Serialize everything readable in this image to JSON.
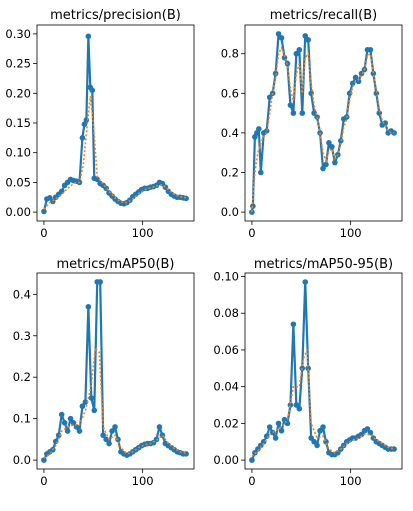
{
  "colors": {
    "raw": "#1f77b4",
    "smooth": "#ff7f0e",
    "marker": "#1f77b4"
  },
  "chart_data": [
    {
      "type": "line",
      "title": "metrics/precision(B)",
      "xlim": [
        -7,
        152
      ],
      "ylim": [
        -0.015,
        0.315
      ],
      "xticks": [
        {
          "v": 0,
          "label": "0"
        },
        {
          "v": 100,
          "label": "100"
        }
      ],
      "yticks": [
        {
          "v": 0.0,
          "label": "0.00"
        },
        {
          "v": 0.05,
          "label": "0.05"
        },
        {
          "v": 0.1,
          "label": "0.10"
        },
        {
          "v": 0.15,
          "label": "0.15"
        },
        {
          "v": 0.2,
          "label": "0.20"
        },
        {
          "v": 0.25,
          "label": "0.25"
        },
        {
          "v": 0.3,
          "label": "0.30"
        }
      ],
      "series": [
        {
          "style": "raw",
          "x": [
            0,
            3,
            6,
            9,
            12,
            15,
            18,
            21,
            24,
            27,
            30,
            33,
            36,
            39,
            41,
            43,
            45,
            47,
            49,
            51,
            54,
            57,
            60,
            63,
            66,
            69,
            72,
            75,
            78,
            81,
            84,
            87,
            90,
            93,
            96,
            99,
            102,
            105,
            108,
            111,
            114,
            117,
            120,
            123,
            126,
            129,
            132,
            135,
            138,
            141,
            144
          ],
          "y": [
            0.001,
            0.022,
            0.024,
            0.018,
            0.025,
            0.03,
            0.035,
            0.045,
            0.05,
            0.055,
            0.053,
            0.052,
            0.05,
            0.125,
            0.148,
            0.155,
            0.296,
            0.21,
            0.205,
            0.057,
            0.055,
            0.048,
            0.045,
            0.04,
            0.032,
            0.027,
            0.022,
            0.018,
            0.015,
            0.014,
            0.016,
            0.02,
            0.026,
            0.03,
            0.034,
            0.038,
            0.04,
            0.04,
            0.042,
            0.043,
            0.045,
            0.05,
            0.048,
            0.042,
            0.035,
            0.03,
            0.027,
            0.025,
            0.025,
            0.024,
            0.023
          ]
        },
        {
          "style": "smooth",
          "x": [
            0,
            6,
            12,
            18,
            24,
            30,
            36,
            40,
            44,
            47,
            50,
            54,
            60,
            66,
            72,
            78,
            84,
            90,
            96,
            102,
            108,
            114,
            120,
            126,
            132,
            138,
            144
          ],
          "y": [
            0.005,
            0.016,
            0.022,
            0.03,
            0.04,
            0.048,
            0.05,
            0.08,
            0.15,
            0.195,
            0.15,
            0.06,
            0.047,
            0.035,
            0.024,
            0.017,
            0.016,
            0.022,
            0.031,
            0.038,
            0.041,
            0.044,
            0.046,
            0.038,
            0.03,
            0.026,
            0.024
          ]
        }
      ]
    },
    {
      "type": "line",
      "title": "metrics/recall(B)",
      "xlim": [
        -7,
        152
      ],
      "ylim": [
        -0.045,
        0.945
      ],
      "xticks": [
        {
          "v": 0,
          "label": "0"
        },
        {
          "v": 100,
          "label": "100"
        }
      ],
      "yticks": [
        {
          "v": 0.0,
          "label": "0.0"
        },
        {
          "v": 0.2,
          "label": "0.2"
        },
        {
          "v": 0.4,
          "label": "0.4"
        },
        {
          "v": 0.6,
          "label": "0.6"
        },
        {
          "v": 0.8,
          "label": "0.8"
        }
      ],
      "series": [
        {
          "style": "raw",
          "x": [
            0,
            1,
            3,
            5,
            7,
            9,
            12,
            15,
            18,
            21,
            24,
            27,
            30,
            33,
            36,
            39,
            42,
            45,
            48,
            51,
            54,
            57,
            60,
            63,
            66,
            69,
            72,
            75,
            78,
            81,
            84,
            87,
            90,
            93,
            96,
            99,
            102,
            105,
            108,
            111,
            114,
            117,
            120,
            123,
            126,
            129,
            132,
            135,
            138,
            141,
            144
          ],
          "y": [
            0.0,
            0.03,
            0.38,
            0.4,
            0.42,
            0.2,
            0.4,
            0.41,
            0.58,
            0.6,
            0.7,
            0.9,
            0.88,
            0.78,
            0.75,
            0.54,
            0.5,
            0.8,
            0.82,
            0.5,
            0.89,
            0.87,
            0.6,
            0.5,
            0.48,
            0.4,
            0.22,
            0.24,
            0.35,
            0.33,
            0.25,
            0.29,
            0.36,
            0.47,
            0.48,
            0.6,
            0.65,
            0.68,
            0.66,
            0.7,
            0.72,
            0.82,
            0.82,
            0.7,
            0.6,
            0.5,
            0.44,
            0.45,
            0.4,
            0.41,
            0.4
          ]
        },
        {
          "style": "smooth",
          "x": [
            0,
            3,
            6,
            9,
            12,
            15,
            18,
            21,
            24,
            27,
            30,
            33,
            36,
            39,
            42,
            45,
            48,
            51,
            54,
            57,
            60,
            63,
            66,
            69,
            72,
            75,
            78,
            81,
            84,
            87,
            90,
            93,
            96,
            99,
            102,
            105,
            108,
            111,
            114,
            117,
            120,
            123,
            126,
            129,
            132,
            135,
            138,
            141,
            144
          ],
          "y": [
            0.0,
            0.2,
            0.3,
            0.35,
            0.38,
            0.4,
            0.5,
            0.6,
            0.68,
            0.8,
            0.83,
            0.79,
            0.74,
            0.62,
            0.56,
            0.7,
            0.75,
            0.6,
            0.78,
            0.8,
            0.65,
            0.54,
            0.48,
            0.4,
            0.3,
            0.26,
            0.31,
            0.32,
            0.27,
            0.29,
            0.34,
            0.43,
            0.47,
            0.57,
            0.63,
            0.66,
            0.67,
            0.69,
            0.72,
            0.79,
            0.8,
            0.7,
            0.62,
            0.52,
            0.46,
            0.44,
            0.41,
            0.4,
            0.4
          ]
        }
      ]
    },
    {
      "type": "line",
      "title": "metrics/mAP50(B)",
      "xlim": [
        -7,
        152
      ],
      "ylim": [
        -0.0215,
        0.4515
      ],
      "xticks": [
        {
          "v": 0,
          "label": "0"
        },
        {
          "v": 100,
          "label": "100"
        }
      ],
      "yticks": [
        {
          "v": 0.0,
          "label": "0.0"
        },
        {
          "v": 0.1,
          "label": "0.1"
        },
        {
          "v": 0.2,
          "label": "0.2"
        },
        {
          "v": 0.3,
          "label": "0.3"
        },
        {
          "v": 0.4,
          "label": "0.4"
        }
      ],
      "series": [
        {
          "style": "raw",
          "x": [
            0,
            3,
            6,
            9,
            12,
            15,
            18,
            21,
            24,
            27,
            30,
            33,
            36,
            39,
            42,
            45,
            48,
            51,
            54,
            57,
            60,
            63,
            66,
            69,
            72,
            75,
            78,
            81,
            84,
            87,
            90,
            93,
            96,
            99,
            102,
            105,
            108,
            111,
            114,
            117,
            120,
            123,
            126,
            129,
            132,
            135,
            138,
            141,
            144
          ],
          "y": [
            0.0,
            0.015,
            0.02,
            0.025,
            0.045,
            0.06,
            0.11,
            0.09,
            0.07,
            0.1,
            0.09,
            0.08,
            0.07,
            0.13,
            0.14,
            0.37,
            0.15,
            0.12,
            0.43,
            0.43,
            0.06,
            0.05,
            0.04,
            0.07,
            0.08,
            0.05,
            0.02,
            0.015,
            0.012,
            0.015,
            0.02,
            0.025,
            0.03,
            0.035,
            0.038,
            0.04,
            0.04,
            0.042,
            0.05,
            0.08,
            0.06,
            0.04,
            0.035,
            0.03,
            0.025,
            0.02,
            0.018,
            0.015,
            0.015
          ]
        },
        {
          "style": "smooth",
          "x": [
            0,
            6,
            12,
            18,
            24,
            30,
            36,
            42,
            48,
            52,
            56,
            60,
            66,
            72,
            78,
            84,
            90,
            96,
            102,
            108,
            114,
            120,
            126,
            132,
            138,
            144
          ],
          "y": [
            0.005,
            0.015,
            0.035,
            0.07,
            0.08,
            0.085,
            0.085,
            0.12,
            0.18,
            0.27,
            0.26,
            0.08,
            0.05,
            0.06,
            0.03,
            0.015,
            0.02,
            0.03,
            0.037,
            0.04,
            0.048,
            0.06,
            0.04,
            0.028,
            0.02,
            0.016
          ]
        }
      ]
    },
    {
      "type": "line",
      "title": "metrics/mAP50-95(B)",
      "xlim": [
        -7,
        152
      ],
      "ylim": [
        -0.004853,
        0.101913
      ],
      "xticks": [
        {
          "v": 0,
          "label": "0"
        },
        {
          "v": 100,
          "label": "100"
        }
      ],
      "yticks": [
        {
          "v": 0.0,
          "label": "0.00"
        },
        {
          "v": 0.02,
          "label": "0.02"
        },
        {
          "v": 0.04,
          "label": "0.04"
        },
        {
          "v": 0.06,
          "label": "0.06"
        },
        {
          "v": 0.08,
          "label": "0.08"
        },
        {
          "v": 0.1,
          "label": "0.10"
        }
      ],
      "series": [
        {
          "style": "raw",
          "x": [
            0,
            3,
            6,
            9,
            12,
            15,
            18,
            21,
            24,
            27,
            30,
            33,
            36,
            39,
            42,
            45,
            48,
            51,
            54,
            57,
            60,
            63,
            66,
            69,
            72,
            75,
            78,
            81,
            84,
            87,
            90,
            93,
            96,
            99,
            102,
            105,
            108,
            111,
            114,
            117,
            120,
            123,
            126,
            129,
            132,
            135,
            138,
            141,
            144
          ],
          "y": [
            0.0,
            0.004,
            0.006,
            0.008,
            0.01,
            0.013,
            0.018,
            0.015,
            0.012,
            0.02,
            0.016,
            0.022,
            0.02,
            0.03,
            0.074,
            0.03,
            0.028,
            0.05,
            0.097,
            0.05,
            0.012,
            0.01,
            0.008,
            0.016,
            0.018,
            0.01,
            0.004,
            0.003,
            0.003,
            0.004,
            0.006,
            0.008,
            0.01,
            0.011,
            0.012,
            0.012,
            0.013,
            0.014,
            0.016,
            0.017,
            0.015,
            0.012,
            0.01,
            0.009,
            0.008,
            0.007,
            0.006,
            0.006,
            0.006
          ]
        },
        {
          "style": "smooth",
          "x": [
            0,
            6,
            12,
            18,
            24,
            30,
            36,
            42,
            48,
            52,
            56,
            60,
            66,
            72,
            78,
            84,
            90,
            96,
            102,
            108,
            114,
            120,
            126,
            132,
            138,
            144
          ],
          "y": [
            0.002,
            0.005,
            0.009,
            0.014,
            0.016,
            0.018,
            0.022,
            0.04,
            0.04,
            0.055,
            0.06,
            0.02,
            0.012,
            0.013,
            0.006,
            0.004,
            0.006,
            0.009,
            0.011,
            0.012,
            0.014,
            0.014,
            0.011,
            0.009,
            0.007,
            0.006
          ]
        }
      ]
    }
  ]
}
